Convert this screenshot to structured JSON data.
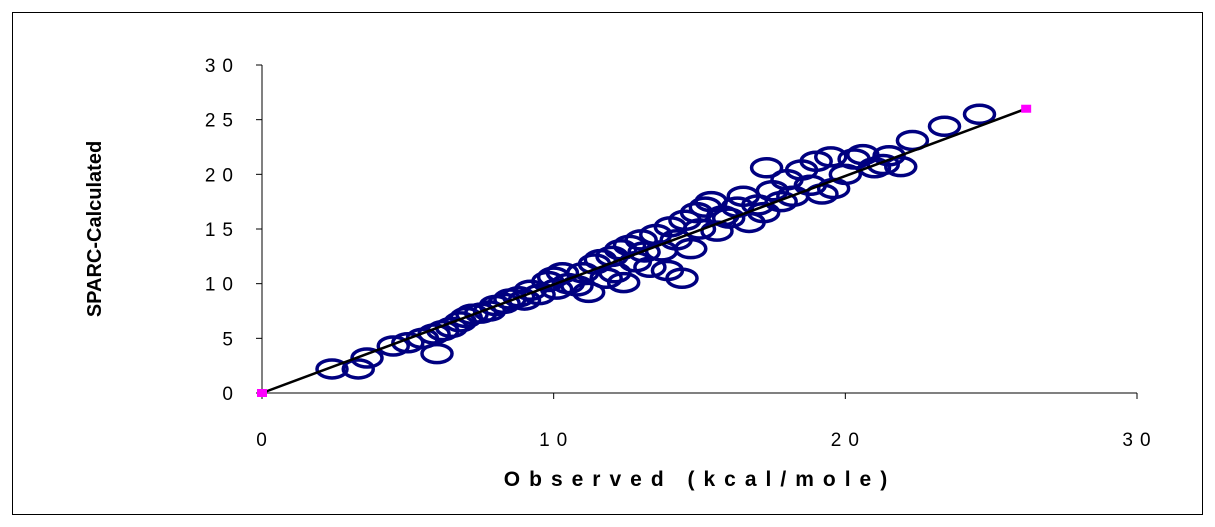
{
  "chart_data": {
    "type": "scatter",
    "xlabel": "Observed (kcal/mole)",
    "ylabel": "SPARC-Calculated",
    "xlim": [
      0,
      30
    ],
    "ylim": [
      0,
      30
    ],
    "xticks": [
      "0",
      "10",
      "20",
      "30"
    ],
    "yticks": [
      "0",
      "5",
      "10",
      "15",
      "20",
      "25",
      "30"
    ],
    "grid": false,
    "legend": "none",
    "colors": {
      "points": "#000080",
      "fit_line": "#000000",
      "endpoints": "#ff00ff"
    },
    "fit_line": {
      "x": [
        0,
        26.2
      ],
      "y": [
        0,
        26
      ]
    },
    "endpoints": [
      {
        "x": 0,
        "y": 0
      },
      {
        "x": 26.2,
        "y": 26
      }
    ],
    "series": [
      {
        "values": [
          {
            "x": 2.4,
            "y": 2.2
          },
          {
            "x": 3.3,
            "y": 2.2
          },
          {
            "x": 3.6,
            "y": 3.2
          },
          {
            "x": 4.5,
            "y": 4.3
          },
          {
            "x": 5.0,
            "y": 4.6
          },
          {
            "x": 5.5,
            "y": 5.0
          },
          {
            "x": 5.9,
            "y": 5.4
          },
          {
            "x": 6.0,
            "y": 3.6
          },
          {
            "x": 6.2,
            "y": 5.7
          },
          {
            "x": 6.5,
            "y": 6.0
          },
          {
            "x": 6.8,
            "y": 6.5
          },
          {
            "x": 7.0,
            "y": 6.9
          },
          {
            "x": 7.2,
            "y": 7.2
          },
          {
            "x": 7.5,
            "y": 7.3
          },
          {
            "x": 7.8,
            "y": 7.5
          },
          {
            "x": 8.0,
            "y": 8.0
          },
          {
            "x": 8.3,
            "y": 8.2
          },
          {
            "x": 8.5,
            "y": 8.6
          },
          {
            "x": 8.8,
            "y": 8.8
          },
          {
            "x": 9.0,
            "y": 8.5
          },
          {
            "x": 9.2,
            "y": 9.4
          },
          {
            "x": 9.5,
            "y": 9.0
          },
          {
            "x": 9.8,
            "y": 10.2
          },
          {
            "x": 10.0,
            "y": 10.6
          },
          {
            "x": 10.1,
            "y": 9.5
          },
          {
            "x": 10.3,
            "y": 11.0
          },
          {
            "x": 10.5,
            "y": 10.0
          },
          {
            "x": 10.8,
            "y": 9.8
          },
          {
            "x": 11.0,
            "y": 11.0
          },
          {
            "x": 11.2,
            "y": 9.2
          },
          {
            "x": 11.4,
            "y": 11.8
          },
          {
            "x": 11.6,
            "y": 12.2
          },
          {
            "x": 11.8,
            "y": 10.5
          },
          {
            "x": 12.0,
            "y": 12.5
          },
          {
            "x": 12.1,
            "y": 11.0
          },
          {
            "x": 12.3,
            "y": 13.1
          },
          {
            "x": 12.4,
            "y": 10.1
          },
          {
            "x": 12.6,
            "y": 13.5
          },
          {
            "x": 12.8,
            "y": 12.0
          },
          {
            "x": 13.0,
            "y": 14.0
          },
          {
            "x": 13.1,
            "y": 12.9
          },
          {
            "x": 13.3,
            "y": 11.5
          },
          {
            "x": 13.5,
            "y": 14.5
          },
          {
            "x": 13.7,
            "y": 13.0
          },
          {
            "x": 13.9,
            "y": 11.2
          },
          {
            "x": 14.0,
            "y": 15.2
          },
          {
            "x": 14.2,
            "y": 14.0
          },
          {
            "x": 14.4,
            "y": 10.5
          },
          {
            "x": 14.5,
            "y": 15.8
          },
          {
            "x": 14.7,
            "y": 13.2
          },
          {
            "x": 14.9,
            "y": 16.5
          },
          {
            "x": 15.0,
            "y": 15.0
          },
          {
            "x": 15.2,
            "y": 17.0
          },
          {
            "x": 15.4,
            "y": 17.5
          },
          {
            "x": 15.6,
            "y": 14.8
          },
          {
            "x": 15.8,
            "y": 16.2
          },
          {
            "x": 16.0,
            "y": 16.0
          },
          {
            "x": 16.3,
            "y": 17.0
          },
          {
            "x": 16.5,
            "y": 18.0
          },
          {
            "x": 16.7,
            "y": 15.6
          },
          {
            "x": 17.0,
            "y": 17.2
          },
          {
            "x": 17.2,
            "y": 16.5
          },
          {
            "x": 17.3,
            "y": 20.6
          },
          {
            "x": 17.5,
            "y": 18.5
          },
          {
            "x": 17.8,
            "y": 17.5
          },
          {
            "x": 18.0,
            "y": 19.5
          },
          {
            "x": 18.2,
            "y": 18.0
          },
          {
            "x": 18.5,
            "y": 20.4
          },
          {
            "x": 18.8,
            "y": 19.0
          },
          {
            "x": 19.0,
            "y": 21.2
          },
          {
            "x": 19.2,
            "y": 18.2
          },
          {
            "x": 19.5,
            "y": 21.6
          },
          {
            "x": 19.6,
            "y": 18.7
          },
          {
            "x": 20.0,
            "y": 20.0
          },
          {
            "x": 20.3,
            "y": 21.4
          },
          {
            "x": 20.6,
            "y": 21.8
          },
          {
            "x": 21.0,
            "y": 20.6
          },
          {
            "x": 21.3,
            "y": 20.9
          },
          {
            "x": 21.5,
            "y": 21.7
          },
          {
            "x": 21.9,
            "y": 20.7
          },
          {
            "x": 22.3,
            "y": 23.1
          },
          {
            "x": 23.4,
            "y": 24.4
          },
          {
            "x": 24.6,
            "y": 25.5
          }
        ]
      }
    ]
  }
}
